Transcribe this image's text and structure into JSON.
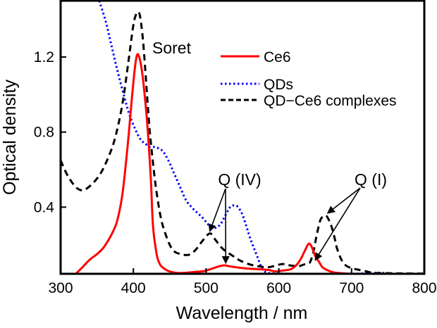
{
  "chart_data": {
    "type": "line",
    "title": "",
    "xlabel": "Wavelength / nm",
    "ylabel": "Optical density",
    "xlim": [
      300,
      800
    ],
    "ylim": [
      0.045,
      1.5
    ],
    "xticks": [
      300,
      400,
      500,
      600,
      700,
      800
    ],
    "xtick_labels": [
      "300",
      "400",
      "500",
      "600",
      "700",
      "800"
    ],
    "yticks": [
      0.4,
      0.8,
      1.2
    ],
    "ytick_labels": [
      "0.4",
      "0.8",
      "1.2"
    ],
    "grid": false,
    "legend_position": "top-right",
    "series": [
      {
        "name": "Ce6",
        "color": "#ff0000",
        "style": "solid",
        "x": [
          321,
          330,
          340,
          350,
          358,
          365,
          372,
          378,
          385,
          392,
          398,
          402,
          405,
          408,
          412,
          416,
          420,
          424,
          427,
          432,
          436,
          440,
          448,
          460,
          470,
          485,
          498,
          510,
          518,
          525,
          532,
          545,
          556,
          570,
          585,
          595,
          605,
          617,
          625,
          631,
          636,
          641,
          645,
          650,
          655,
          660,
          668,
          676,
          690,
          702
        ],
        "y": [
          0.045,
          0.08,
          0.12,
          0.15,
          0.18,
          0.22,
          0.27,
          0.33,
          0.47,
          0.72,
          0.98,
          1.14,
          1.21,
          1.2,
          1.12,
          0.98,
          0.8,
          0.55,
          0.3,
          0.15,
          0.1,
          0.08,
          0.06,
          0.05,
          0.05,
          0.055,
          0.06,
          0.075,
          0.085,
          0.09,
          0.085,
          0.078,
          0.073,
          0.07,
          0.066,
          0.058,
          0.062,
          0.07,
          0.095,
          0.13,
          0.17,
          0.205,
          0.19,
          0.14,
          0.11,
          0.08,
          0.062,
          0.052,
          0.047,
          0.045
        ]
      },
      {
        "name": "QDs",
        "color": "#0000ff",
        "style": "dotted",
        "x": [
          353,
          362,
          370,
          378,
          386,
          394,
          402,
          410,
          416,
          423,
          430,
          440,
          448,
          456,
          464,
          472,
          480,
          488,
          496,
          505,
          513,
          520,
          527,
          533,
          539,
          544,
          550,
          556,
          561,
          566,
          571,
          576,
          580,
          585,
          600,
          650,
          700,
          742,
          760,
          800
        ],
        "y": [
          1.5,
          1.39,
          1.26,
          1.13,
          1.01,
          0.9,
          0.82,
          0.76,
          0.74,
          0.72,
          0.72,
          0.7,
          0.65,
          0.58,
          0.51,
          0.44,
          0.4,
          0.37,
          0.34,
          0.3,
          0.29,
          0.31,
          0.36,
          0.4,
          0.41,
          0.4,
          0.36,
          0.29,
          0.23,
          0.18,
          0.13,
          0.08,
          0.06,
          0.05,
          0.046,
          0.045,
          0.045,
          0.05,
          0.045,
          0.045
        ]
      },
      {
        "name": "QD−Ce6 complexes",
        "color": "#000000",
        "style": "dashed",
        "x": [
          300,
          308,
          316,
          323,
          329,
          336,
          345,
          355,
          365,
          375,
          385,
          393,
          400,
          404,
          406,
          409,
          413,
          417,
          422,
          428,
          433,
          438,
          443,
          450,
          456,
          465,
          476,
          485,
          495,
          505,
          512,
          520,
          527,
          537,
          547,
          560,
          572,
          585,
          595,
          605,
          615,
          627,
          635,
          641,
          644,
          648,
          652,
          657,
          661,
          665,
          669,
          673,
          677,
          680,
          686,
          692,
          700,
          709,
          720,
          731,
          750,
          770,
          800
        ],
        "y": [
          0.65,
          0.58,
          0.53,
          0.5,
          0.49,
          0.5,
          0.53,
          0.58,
          0.66,
          0.77,
          0.95,
          1.17,
          1.37,
          1.43,
          1.44,
          1.42,
          1.3,
          1.1,
          0.83,
          0.6,
          0.45,
          0.34,
          0.27,
          0.2,
          0.165,
          0.15,
          0.146,
          0.17,
          0.22,
          0.26,
          0.23,
          0.19,
          0.165,
          0.14,
          0.115,
          0.095,
          0.085,
          0.08,
          0.088,
          0.097,
          0.09,
          0.086,
          0.095,
          0.1,
          0.116,
          0.17,
          0.25,
          0.33,
          0.35,
          0.355,
          0.33,
          0.29,
          0.23,
          0.18,
          0.12,
          0.09,
          0.075,
          0.067,
          0.058,
          0.05,
          0.048,
          0.047,
          0.046
        ]
      }
    ],
    "annotations": [
      {
        "text": "Soret",
        "x": 435,
        "y": 1.33
      },
      {
        "text": "Q (IV)",
        "x": 538,
        "y": 0.5,
        "arrows_to": [
          [
            505,
            0.26
          ],
          [
            527,
            0.09
          ]
        ]
      },
      {
        "text": "Q (I)",
        "x": 712,
        "y": 0.5,
        "arrows_to": [
          [
            665,
            0.36
          ],
          [
            648,
            0.11
          ]
        ]
      }
    ]
  }
}
